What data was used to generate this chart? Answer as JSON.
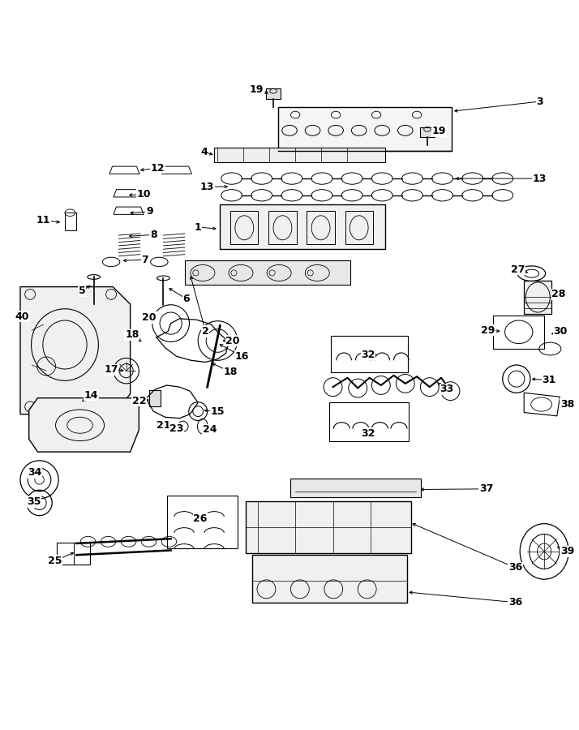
{
  "title": "",
  "bg_color": "#ffffff",
  "fig_width": 7.14,
  "fig_height": 9.0,
  "dpi": 100,
  "label_fontsize": 9,
  "label_fontweight": "bold",
  "line_color": "#000000",
  "text_color": "#000000"
}
